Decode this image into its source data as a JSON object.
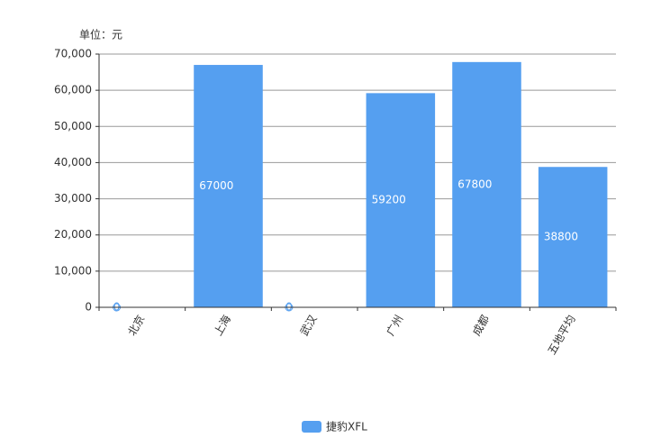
{
  "chart_data": {
    "type": "bar",
    "unit_label": "单位：元",
    "categories": [
      "北京",
      "上海",
      "武汉",
      "广州",
      "成都",
      "五地平均"
    ],
    "series": [
      {
        "name": "捷豹XFL",
        "color": "#559ff0",
        "values": [
          0,
          67000,
          0,
          59200,
          67800,
          38800
        ]
      }
    ],
    "ylim": [
      0,
      70000
    ],
    "yticks": [
      0,
      {
        "value": 10000,
        "label": "10,000"
      },
      {
        "value": 20000,
        "label": "20,000"
      },
      {
        "value": 30000,
        "label": "30,000"
      },
      {
        "value": 40000,
        "label": "40,000"
      },
      {
        "value": 50000,
        "label": "50,000"
      },
      {
        "value": 60000,
        "label": "60,000"
      },
      {
        "value": 70000,
        "label": "70,000"
      }
    ],
    "grid": true,
    "legend": "bottom"
  }
}
